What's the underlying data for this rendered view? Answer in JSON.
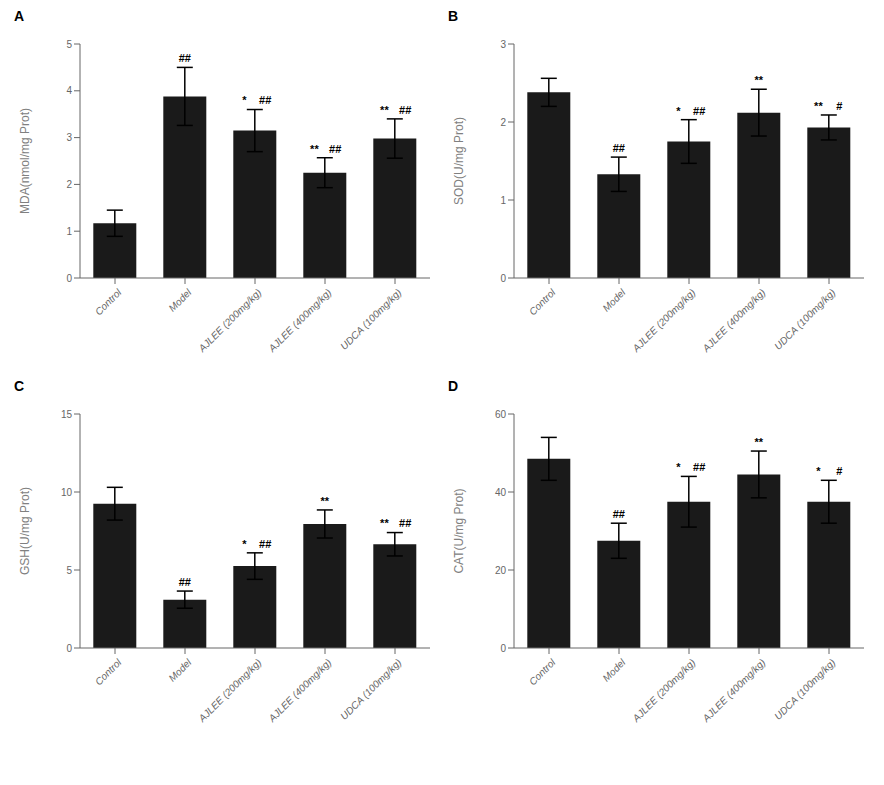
{
  "chart_data": [
    {
      "type": "bar",
      "title": "A",
      "ylabel": "MDA(nmol/mg Prot)",
      "categories": [
        "Control",
        "Model",
        "AJLEE (200mg/kg)",
        "AJLEE (400mg/kg)",
        "UDCA (100mg/kg)"
      ],
      "values": [
        1.17,
        3.88,
        3.15,
        2.25,
        2.98
      ],
      "errors": [
        0.28,
        0.62,
        0.45,
        0.32,
        0.42
      ],
      "annotations": [
        [],
        [
          "##"
        ],
        [
          "*",
          "##"
        ],
        [
          "**",
          "##"
        ],
        [
          "**",
          "##"
        ]
      ],
      "color": "#1a1a1a",
      "ylim": [
        0,
        5
      ],
      "yticks": [
        0,
        1,
        2,
        3,
        4,
        5
      ],
      "grid": false
    },
    {
      "type": "bar",
      "title": "B",
      "ylabel": "SOD(U/mg Prot)",
      "categories": [
        "Control",
        "Model",
        "AJLEE (200mg/kg)",
        "AJLEE (400mg/kg)",
        "UDCA (100mg/kg)"
      ],
      "values": [
        2.38,
        1.33,
        1.75,
        2.12,
        1.93
      ],
      "errors": [
        0.18,
        0.22,
        0.28,
        0.3,
        0.16
      ],
      "annotations": [
        [],
        [
          "##"
        ],
        [
          "*",
          "##"
        ],
        [
          "**"
        ],
        [
          "**",
          "#"
        ]
      ],
      "color": "#1a1a1a",
      "ylim": [
        0,
        3
      ],
      "yticks": [
        0,
        1,
        2,
        3
      ],
      "grid": false
    },
    {
      "type": "bar",
      "title": "C",
      "ylabel": "GSH(U/mg Prot)",
      "categories": [
        "Control",
        "Model",
        "AJLEE (200mg/kg)",
        "AJLEE (400mg/kg)",
        "UDCA (100mg/kg)"
      ],
      "values": [
        9.25,
        3.1,
        5.25,
        7.95,
        6.65
      ],
      "errors": [
        1.05,
        0.55,
        0.85,
        0.9,
        0.75
      ],
      "annotations": [
        [],
        [
          "##"
        ],
        [
          "*",
          "##"
        ],
        [
          "**"
        ],
        [
          "**",
          "##"
        ]
      ],
      "color": "#1a1a1a",
      "ylim": [
        0,
        15
      ],
      "yticks": [
        0,
        5,
        10,
        15
      ],
      "grid": false
    },
    {
      "type": "bar",
      "title": "D",
      "ylabel": "CAT(U/mg Prot)",
      "categories": [
        "Control",
        "Model",
        "AJLEE (200mg/kg)",
        "AJLEE (400mg/kg)",
        "UDCA (100mg/kg)"
      ],
      "values": [
        48.5,
        27.5,
        37.5,
        44.5,
        37.5
      ],
      "errors": [
        5.5,
        4.5,
        6.5,
        6.0,
        5.5
      ],
      "annotations": [
        [],
        [
          "##"
        ],
        [
          "*",
          "##"
        ],
        [
          "**"
        ],
        [
          "*",
          "#"
        ]
      ],
      "color": "#1a1a1a",
      "ylim": [
        0,
        60
      ],
      "yticks": [
        0,
        20,
        40,
        60
      ],
      "grid": false
    }
  ]
}
